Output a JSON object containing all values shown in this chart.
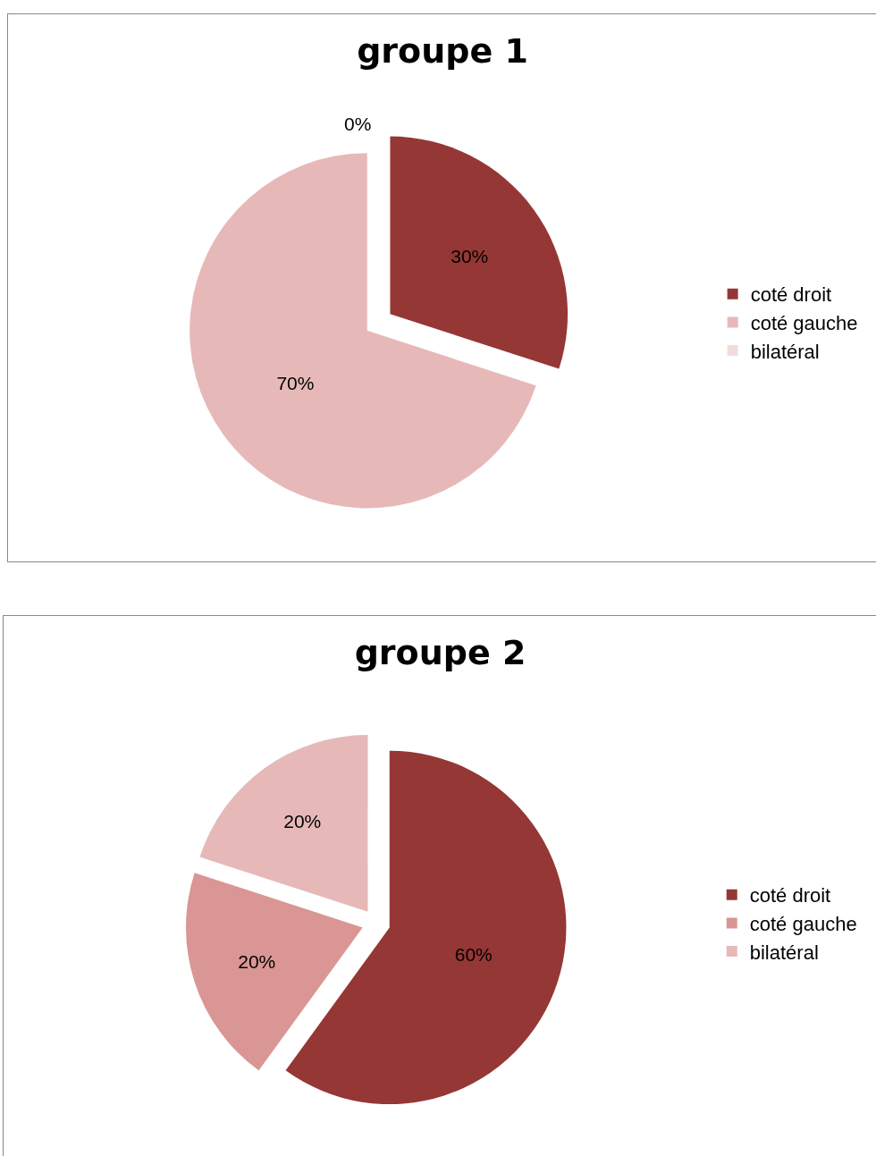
{
  "chart_data": [
    {
      "type": "pie",
      "title": "groupe 1",
      "categories": [
        "coté droit",
        "coté gauche",
        "bilatéral"
      ],
      "values": [
        30,
        70,
        0
      ],
      "value_labels": [
        "30%",
        "70%",
        "0%"
      ],
      "colors": [
        "#953735",
        "#e6b9b8",
        "#f2dcdb"
      ],
      "legend": "right"
    },
    {
      "type": "pie",
      "title": "groupe 2",
      "categories": [
        "coté droit",
        "coté gauche",
        "bilatéral"
      ],
      "values": [
        60,
        20,
        20
      ],
      "value_labels": [
        "60%",
        "20%",
        "20%"
      ],
      "colors": [
        "#953735",
        "#d99694",
        "#e6b9b8"
      ],
      "legend": "right"
    }
  ]
}
